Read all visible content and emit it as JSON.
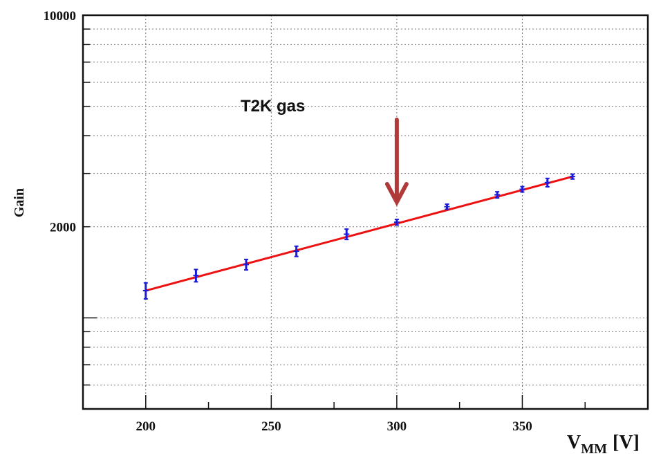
{
  "chart_data": {
    "type": "scatter",
    "title": "",
    "xlabel": "V",
    "xlabel_subscript": "MM",
    "xlabel_unit": "[V]",
    "ylabel": "Gain",
    "xlim": [
      175,
      400
    ],
    "ylim": [
      500,
      10000
    ],
    "y_scale": "log",
    "grid": true,
    "x_ticks": [
      200,
      250,
      300,
      350
    ],
    "y_tick_labels": [
      {
        "value": 10000,
        "label": "10000"
      },
      {
        "value": 2000,
        "label": "2000"
      }
    ],
    "series": [
      {
        "name": "",
        "color": "#1a1adb",
        "points": [
          {
            "x": 200,
            "y": 1230,
            "err": 75
          },
          {
            "x": 220,
            "y": 1380,
            "err": 65
          },
          {
            "x": 240,
            "y": 1500,
            "err": 60
          },
          {
            "x": 260,
            "y": 1660,
            "err": 65
          },
          {
            "x": 280,
            "y": 1890,
            "err": 75
          },
          {
            "x": 300,
            "y": 2070,
            "err": 45
          },
          {
            "x": 320,
            "y": 2330,
            "err": 45
          },
          {
            "x": 340,
            "y": 2550,
            "err": 60
          },
          {
            "x": 350,
            "y": 2660,
            "err": 55
          },
          {
            "x": 360,
            "y": 2800,
            "err": 90
          },
          {
            "x": 370,
            "y": 2930,
            "err": 55
          }
        ]
      }
    ],
    "fit": {
      "color": "#ee1111",
      "x": [
        200,
        370
      ],
      "y": [
        1230,
        2930
      ]
    },
    "annotation": {
      "text": "T2K gas",
      "arrow_x": 300,
      "arrow_color": "#b03a3a"
    }
  }
}
